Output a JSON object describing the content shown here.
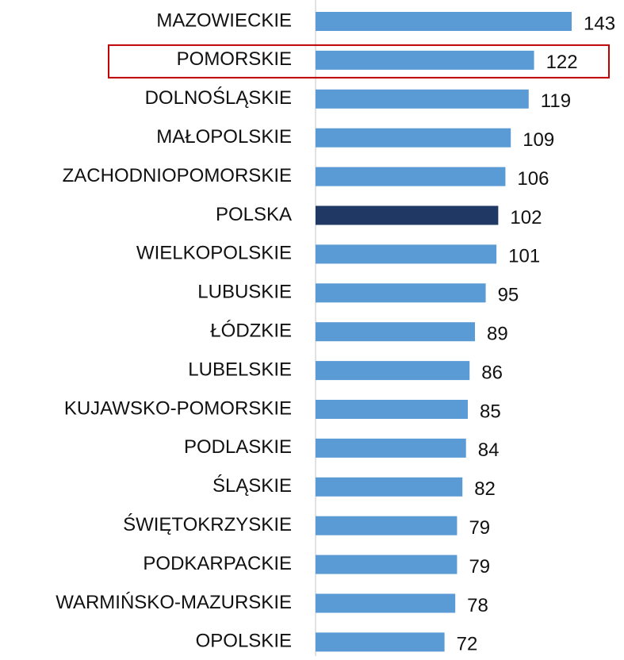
{
  "chart_data": {
    "type": "barh",
    "categories": [
      "MAZOWIECKIE",
      "POMORSKIE",
      "DOLNOŚLĄSKIE",
      "MAŁOPOLSKIE",
      "ZACHODNIOPOMORSKIE",
      "POLSKA",
      "WIELKOPOLSKIE",
      "LUBUSKIE",
      "ŁÓDZKIE",
      "LUBELSKIE",
      "KUJAWSKO-POMORSKIE",
      "PODLASKIE",
      "ŚLĄSKIE",
      "ŚWIĘTOKRZYSKIE",
      "PODKARPACKIE",
      "WARMIŃSKO-MAZURSKIE",
      "OPOLSKIE"
    ],
    "values": [
      143,
      122,
      119,
      109,
      106,
      102,
      101,
      95,
      89,
      86,
      85,
      84,
      82,
      79,
      79,
      78,
      72
    ],
    "colors": [
      "#5b9bd5",
      "#5b9bd5",
      "#5b9bd5",
      "#5b9bd5",
      "#5b9bd5",
      "#1f3864",
      "#5b9bd5",
      "#5b9bd5",
      "#5b9bd5",
      "#5b9bd5",
      "#5b9bd5",
      "#5b9bd5",
      "#5b9bd5",
      "#5b9bd5",
      "#5b9bd5",
      "#5b9bd5",
      "#5b9bd5"
    ],
    "highlight": 1,
    "highlight_color": "#c00000"
  }
}
